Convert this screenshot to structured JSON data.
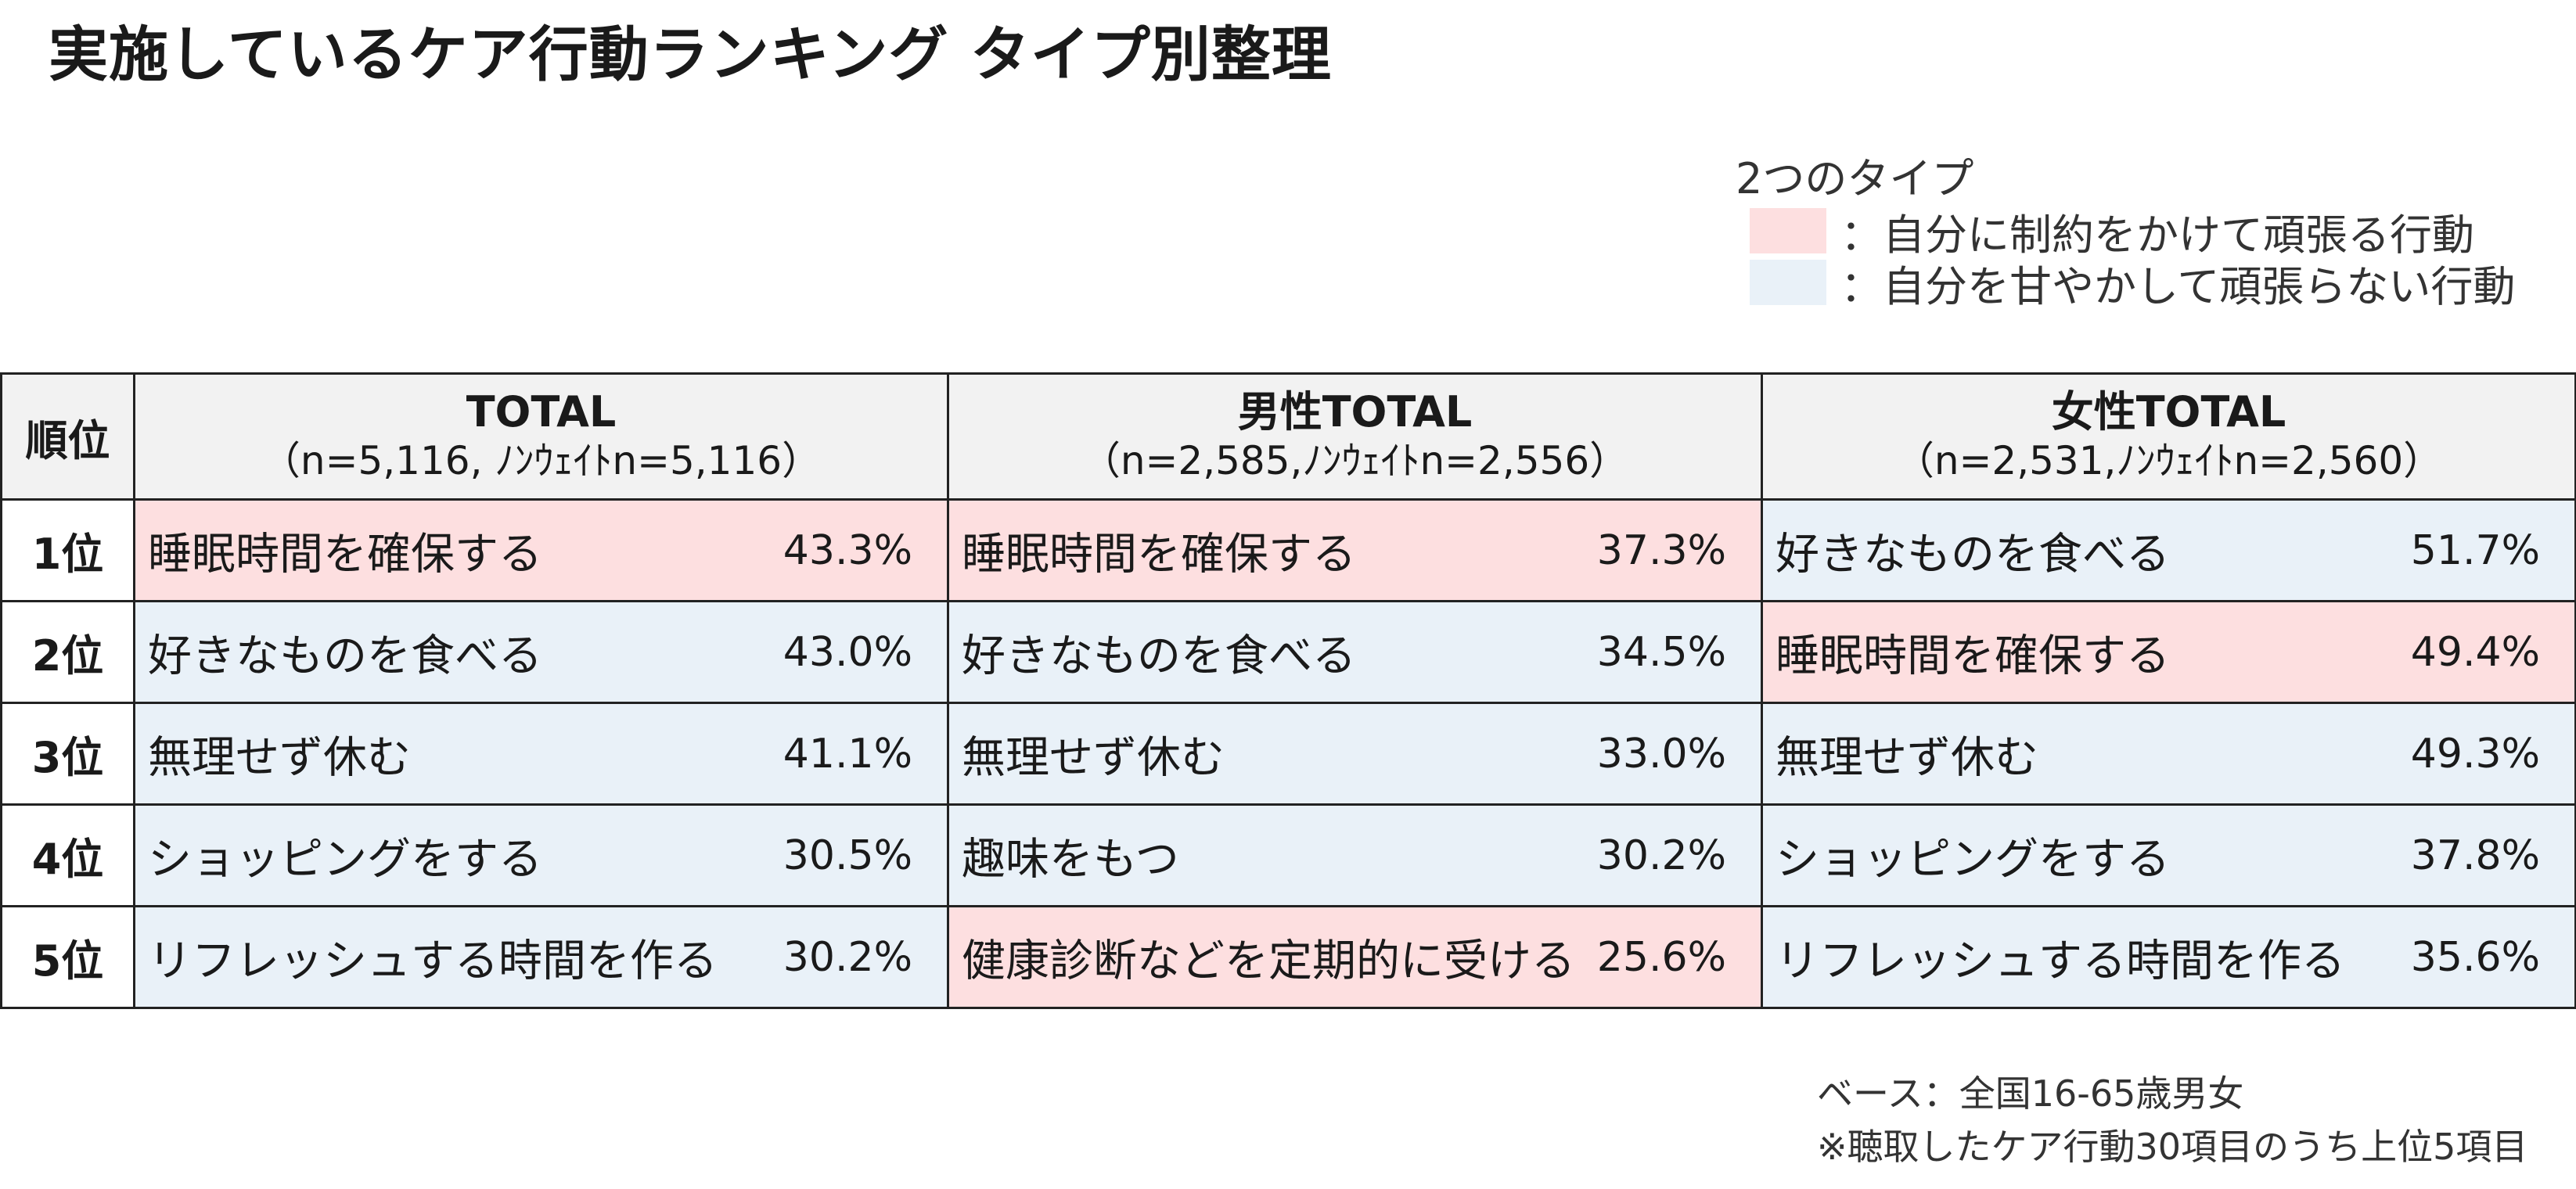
{
  "title": "実施しているケア行動ランキング タイプ別整理",
  "legend": {
    "title": "2つのタイプ",
    "items": [
      {
        "label": "：自分に制約をかけて頑張る行動",
        "color": "#fddfe0"
      },
      {
        "label": "：自分を甘やかして頑張らない行動",
        "color": "#e9f1f8"
      }
    ]
  },
  "chart_data": {
    "type": "table",
    "rank_header": "順位",
    "ranks": [
      "1位",
      "2位",
      "3位",
      "4位",
      "5位"
    ],
    "columns": [
      {
        "title": "TOTAL",
        "subtitle": "（n=5,116, ﾉﾝｳｪｲﾄn=5,116）",
        "rows": [
          {
            "item": "睡眠時間を確保する",
            "value": "43.3%",
            "type": "constraint"
          },
          {
            "item": "好きなものを食べる",
            "value": "43.0%",
            "type": "indulge"
          },
          {
            "item": "無理せず休む",
            "value": "41.1%",
            "type": "indulge"
          },
          {
            "item": "ショッピングをする",
            "value": "30.5%",
            "type": "indulge"
          },
          {
            "item": "リフレッシュする時間を作る",
            "value": "30.2%",
            "type": "indulge"
          }
        ]
      },
      {
        "title": "男性TOTAL",
        "subtitle": "（n=2,585,ﾉﾝｳｪｲﾄn=2,556）",
        "rows": [
          {
            "item": "睡眠時間を確保する",
            "value": "37.3%",
            "type": "constraint"
          },
          {
            "item": "好きなものを食べる",
            "value": "34.5%",
            "type": "indulge"
          },
          {
            "item": "無理せず休む",
            "value": "33.0%",
            "type": "indulge"
          },
          {
            "item": "趣味をもつ",
            "value": "30.2%",
            "type": "indulge"
          },
          {
            "item": "健康診断などを定期的に受ける",
            "value": "25.6%",
            "type": "constraint"
          }
        ]
      },
      {
        "title": "女性TOTAL",
        "subtitle": "（n=2,531,ﾉﾝｳｪｲﾄn=2,560）",
        "rows": [
          {
            "item": "好きなものを食べる",
            "value": "51.7%",
            "type": "indulge"
          },
          {
            "item": "睡眠時間を確保する",
            "value": "49.4%",
            "type": "constraint"
          },
          {
            "item": "無理せず休む",
            "value": "49.3%",
            "type": "indulge"
          },
          {
            "item": "ショッピングをする",
            "value": "37.8%",
            "type": "indulge"
          },
          {
            "item": "リフレッシュする時間を作る",
            "value": "35.6%",
            "type": "indulge"
          }
        ]
      }
    ]
  },
  "notes": {
    "base": "ベース：全国16-65歳男女",
    "footnote": "※聴取したケア行動30項目のうち上位5項目"
  }
}
